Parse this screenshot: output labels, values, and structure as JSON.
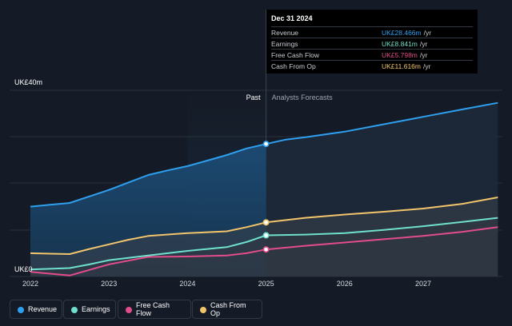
{
  "tooltip": {
    "date": "Dec 31 2024",
    "rows": [
      {
        "name": "Revenue",
        "value": "UK£28.466m",
        "unit": "/yr"
      },
      {
        "name": "Earnings",
        "value": "UK£8.841m",
        "unit": "/yr"
      },
      {
        "name": "Free Cash Flow",
        "value": "UK£5.798m",
        "unit": "/yr"
      },
      {
        "name": "Cash From Op",
        "value": "UK£11.616m",
        "unit": "/yr"
      }
    ]
  },
  "legend": [
    {
      "label": "Revenue"
    },
    {
      "label": "Earnings"
    },
    {
      "label": "Free Cash Flow"
    },
    {
      "label": "Cash From Op"
    }
  ],
  "colors": {
    "revenue": "#2fa0f0",
    "earnings": "#6fe0cc",
    "free_cash_flow": "#e24c8b",
    "cash_from_op": "#f2c46b",
    "background": "#151b26"
  },
  "chart_data": {
    "type": "area",
    "region_labels": {
      "past": "Past",
      "forecast": "Analysts Forecasts"
    },
    "y_tick_labels": [
      "UK£40m",
      "UK£0"
    ],
    "ylim": [
      0,
      40
    ],
    "x_ticks": [
      "2022",
      "2023",
      "2024",
      "2025",
      "2026",
      "2027"
    ],
    "divider_date": 2025.0,
    "series": [
      {
        "name": "Revenue",
        "key": "revenue",
        "x": [
          2022.0,
          2022.25,
          2022.5,
          2022.75,
          2023.0,
          2023.25,
          2023.5,
          2023.75,
          2024.0,
          2024.25,
          2024.5,
          2024.75,
          2025.0,
          2025.25,
          2025.5,
          2026.0,
          2026.5,
          2027.0,
          2027.5,
          2027.95
        ],
        "y": [
          15.0,
          15.4,
          15.8,
          17.2,
          18.6,
          20.2,
          21.8,
          22.8,
          23.7,
          24.9,
          26.1,
          27.5,
          28.47,
          29.4,
          29.9,
          31.1,
          32.7,
          34.3,
          35.9,
          37.3
        ]
      },
      {
        "name": "Earnings",
        "key": "earnings",
        "x": [
          2022.0,
          2022.5,
          2022.75,
          2023.0,
          2023.5,
          2024.0,
          2024.25,
          2024.5,
          2024.75,
          2025.0,
          2025.5,
          2026.0,
          2026.5,
          2027.0,
          2027.5,
          2027.95
        ],
        "y": [
          1.5,
          1.8,
          2.6,
          3.5,
          4.5,
          5.5,
          5.9,
          6.3,
          7.4,
          8.84,
          9.0,
          9.3,
          10.0,
          10.8,
          11.7,
          12.6
        ]
      },
      {
        "name": "Free Cash Flow",
        "key": "free_cash_flow",
        "x": [
          2022.0,
          2022.25,
          2022.5,
          2022.75,
          2023.0,
          2023.25,
          2023.5,
          2024.0,
          2024.5,
          2024.75,
          2025.0,
          2025.5,
          2026.0,
          2026.5,
          2027.0,
          2027.5,
          2027.95
        ],
        "y": [
          1.0,
          0.6,
          0.2,
          1.4,
          2.6,
          3.4,
          4.2,
          4.3,
          4.5,
          5.0,
          5.8,
          6.6,
          7.3,
          8.0,
          8.7,
          9.6,
          10.6
        ]
      },
      {
        "name": "Cash From Op",
        "key": "cash_from_op",
        "x": [
          2022.0,
          2022.25,
          2022.5,
          2022.75,
          2023.0,
          2023.25,
          2023.5,
          2024.0,
          2024.5,
          2024.75,
          2025.0,
          2025.5,
          2026.0,
          2026.5,
          2027.0,
          2027.5,
          2027.95
        ],
        "y": [
          5.0,
          4.9,
          4.8,
          5.9,
          6.9,
          7.9,
          8.7,
          9.3,
          9.7,
          10.6,
          11.62,
          12.6,
          13.3,
          13.9,
          14.6,
          15.6,
          17.0
        ]
      }
    ],
    "grid": true,
    "legend_position": "bottom-left"
  }
}
